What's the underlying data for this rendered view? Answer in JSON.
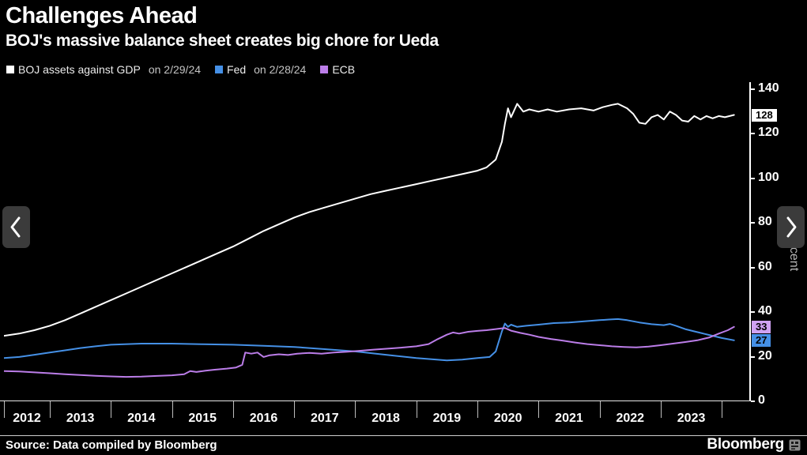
{
  "header": {
    "title": "Challenges Ahead",
    "subtitle": "BOJ's massive balance sheet creates big chore for Ueda"
  },
  "legend": [
    {
      "label": "BOJ assets against GDP",
      "date": "on 2/29/24",
      "color": "#ffffff"
    },
    {
      "label": "Fed",
      "date": "on 2/28/24",
      "color": "#4590e6"
    },
    {
      "label": "ECB",
      "date": "",
      "color": "#bb7de8"
    }
  ],
  "chart_data": {
    "type": "line",
    "title": "Challenges Ahead",
    "subtitle": "BOJ's massive balance sheet creates big chore for Ueda",
    "ylabel": "Percent",
    "xlabel": "",
    "xlim": [
      2012.25,
      2024.45
    ],
    "ylim": [
      0,
      142
    ],
    "y_ticks": [
      0,
      20,
      40,
      60,
      80,
      100,
      120,
      140
    ],
    "x_ticks": [
      2012,
      2013,
      2014,
      2015,
      2016,
      2017,
      2018,
      2019,
      2020,
      2021,
      2022,
      2023
    ],
    "grid": false,
    "legend_position": "top-left",
    "series": [
      {
        "id": "boj",
        "name": "BOJ assets against GDP on 2/29/24",
        "color": "#ffffff",
        "badge_bg": "#ffffff",
        "last_label": "128",
        "points": [
          [
            2012.25,
            29
          ],
          [
            2012.5,
            30
          ],
          [
            2012.75,
            31.5
          ],
          [
            2013,
            33.5
          ],
          [
            2013.25,
            36
          ],
          [
            2013.5,
            39
          ],
          [
            2013.75,
            42
          ],
          [
            2014,
            45
          ],
          [
            2014.25,
            48
          ],
          [
            2014.5,
            51
          ],
          [
            2014.75,
            54
          ],
          [
            2015,
            57
          ],
          [
            2015.25,
            60
          ],
          [
            2015.5,
            63
          ],
          [
            2015.75,
            66
          ],
          [
            2016,
            69
          ],
          [
            2016.25,
            72.5
          ],
          [
            2016.5,
            76
          ],
          [
            2016.75,
            79
          ],
          [
            2017,
            82
          ],
          [
            2017.25,
            84.5
          ],
          [
            2017.5,
            86.5
          ],
          [
            2017.75,
            88.5
          ],
          [
            2018,
            90.5
          ],
          [
            2018.25,
            92.5
          ],
          [
            2018.5,
            94
          ],
          [
            2018.75,
            95.5
          ],
          [
            2019,
            97
          ],
          [
            2019.25,
            98.5
          ],
          [
            2019.5,
            100
          ],
          [
            2019.75,
            101.5
          ],
          [
            2020,
            103
          ],
          [
            2020.15,
            104.5
          ],
          [
            2020.3,
            108
          ],
          [
            2020.4,
            116
          ],
          [
            2020.45,
            124
          ],
          [
            2020.5,
            131
          ],
          [
            2020.55,
            127
          ],
          [
            2020.6,
            130
          ],
          [
            2020.65,
            133
          ],
          [
            2020.75,
            129.5
          ],
          [
            2020.85,
            130.5
          ],
          [
            2021,
            129.5
          ],
          [
            2021.15,
            130.5
          ],
          [
            2021.3,
            129.5
          ],
          [
            2021.5,
            130.5
          ],
          [
            2021.7,
            131
          ],
          [
            2021.9,
            130
          ],
          [
            2022.05,
            131.5
          ],
          [
            2022.2,
            132.5
          ],
          [
            2022.3,
            133
          ],
          [
            2022.45,
            131
          ],
          [
            2022.55,
            128.5
          ],
          [
            2022.65,
            124.5
          ],
          [
            2022.75,
            124
          ],
          [
            2022.85,
            127
          ],
          [
            2022.95,
            128
          ],
          [
            2023.05,
            126
          ],
          [
            2023.15,
            129.5
          ],
          [
            2023.25,
            128
          ],
          [
            2023.35,
            125.5
          ],
          [
            2023.45,
            125
          ],
          [
            2023.55,
            127.5
          ],
          [
            2023.65,
            126
          ],
          [
            2023.75,
            127.5
          ],
          [
            2023.85,
            126.5
          ],
          [
            2023.95,
            127.5
          ],
          [
            2024.05,
            127
          ],
          [
            2024.2,
            128
          ]
        ]
      },
      {
        "id": "fed",
        "name": "Fed on 2/28/24",
        "color": "#4590e6",
        "badge_bg": "#4590e6",
        "last_label": "27",
        "points": [
          [
            2012.25,
            19
          ],
          [
            2012.5,
            19.5
          ],
          [
            2012.75,
            20.5
          ],
          [
            2013,
            21.5
          ],
          [
            2013.25,
            22.5
          ],
          [
            2013.5,
            23.5
          ],
          [
            2013.75,
            24.3
          ],
          [
            2014,
            25
          ],
          [
            2014.5,
            25.5
          ],
          [
            2015,
            25.5
          ],
          [
            2015.5,
            25.2
          ],
          [
            2016,
            25
          ],
          [
            2016.5,
            24.5
          ],
          [
            2017,
            24
          ],
          [
            2017.5,
            23
          ],
          [
            2018,
            22
          ],
          [
            2018.5,
            20.5
          ],
          [
            2019,
            19
          ],
          [
            2019.25,
            18.5
          ],
          [
            2019.5,
            18
          ],
          [
            2019.75,
            18.3
          ],
          [
            2020,
            19
          ],
          [
            2020.2,
            19.5
          ],
          [
            2020.3,
            22
          ],
          [
            2020.4,
            31
          ],
          [
            2020.45,
            34.5
          ],
          [
            2020.5,
            33
          ],
          [
            2020.55,
            34
          ],
          [
            2020.65,
            33
          ],
          [
            2020.8,
            33.5
          ],
          [
            2021,
            34
          ],
          [
            2021.25,
            34.7
          ],
          [
            2021.5,
            35
          ],
          [
            2021.75,
            35.5
          ],
          [
            2022,
            36
          ],
          [
            2022.15,
            36.3
          ],
          [
            2022.3,
            36.5
          ],
          [
            2022.45,
            36
          ],
          [
            2022.65,
            35
          ],
          [
            2022.85,
            34.2
          ],
          [
            2023.05,
            33.8
          ],
          [
            2023.15,
            34.3
          ],
          [
            2023.25,
            33.5
          ],
          [
            2023.4,
            32
          ],
          [
            2023.55,
            31
          ],
          [
            2023.7,
            30
          ],
          [
            2023.85,
            29
          ],
          [
            2024,
            28
          ],
          [
            2024.2,
            27
          ]
        ]
      },
      {
        "id": "ecb",
        "name": "ECB",
        "color": "#bb7de8",
        "badge_bg": "#cfa2f2",
        "last_label": "33",
        "points": [
          [
            2012.25,
            13.2
          ],
          [
            2012.5,
            13
          ],
          [
            2012.75,
            12.6
          ],
          [
            2013,
            12.2
          ],
          [
            2013.25,
            11.8
          ],
          [
            2013.5,
            11.4
          ],
          [
            2013.75,
            11.1
          ],
          [
            2014,
            10.8
          ],
          [
            2014.25,
            10.6
          ],
          [
            2014.5,
            10.7
          ],
          [
            2014.75,
            11
          ],
          [
            2015,
            11.3
          ],
          [
            2015.2,
            11.8
          ],
          [
            2015.3,
            13.2
          ],
          [
            2015.4,
            12.8
          ],
          [
            2015.55,
            13.4
          ],
          [
            2015.7,
            13.8
          ],
          [
            2015.9,
            14.3
          ],
          [
            2016.05,
            14.8
          ],
          [
            2016.15,
            16
          ],
          [
            2016.2,
            21.5
          ],
          [
            2016.3,
            21
          ],
          [
            2016.4,
            21.5
          ],
          [
            2016.5,
            19.5
          ],
          [
            2016.6,
            20.3
          ],
          [
            2016.75,
            20.7
          ],
          [
            2016.9,
            20.4
          ],
          [
            2017.05,
            21
          ],
          [
            2017.25,
            21.3
          ],
          [
            2017.45,
            21
          ],
          [
            2017.65,
            21.5
          ],
          [
            2017.85,
            21.8
          ],
          [
            2018.05,
            22.2
          ],
          [
            2018.3,
            22.8
          ],
          [
            2018.55,
            23.3
          ],
          [
            2018.8,
            23.8
          ],
          [
            2019,
            24.3
          ],
          [
            2019.2,
            25.3
          ],
          [
            2019.35,
            27.5
          ],
          [
            2019.5,
            29.5
          ],
          [
            2019.6,
            30.5
          ],
          [
            2019.7,
            30
          ],
          [
            2019.85,
            30.8
          ],
          [
            2020,
            31.2
          ],
          [
            2020.15,
            31.5
          ],
          [
            2020.3,
            32
          ],
          [
            2020.45,
            32.5
          ],
          [
            2020.55,
            31.3
          ],
          [
            2020.7,
            30.3
          ],
          [
            2020.85,
            29.5
          ],
          [
            2021,
            28.5
          ],
          [
            2021.2,
            27.6
          ],
          [
            2021.4,
            26.8
          ],
          [
            2021.6,
            26
          ],
          [
            2021.8,
            25.3
          ],
          [
            2022,
            24.8
          ],
          [
            2022.2,
            24.3
          ],
          [
            2022.4,
            24
          ],
          [
            2022.6,
            23.8
          ],
          [
            2022.8,
            24.2
          ],
          [
            2023,
            24.8
          ],
          [
            2023.2,
            25.5
          ],
          [
            2023.4,
            26.2
          ],
          [
            2023.6,
            27
          ],
          [
            2023.8,
            28.3
          ],
          [
            2023.95,
            30
          ],
          [
            2024.1,
            31.5
          ],
          [
            2024.2,
            33
          ]
        ]
      }
    ]
  },
  "footer": {
    "source": "Source: Data compiled by Bloomberg",
    "brand": "Bloomberg"
  }
}
